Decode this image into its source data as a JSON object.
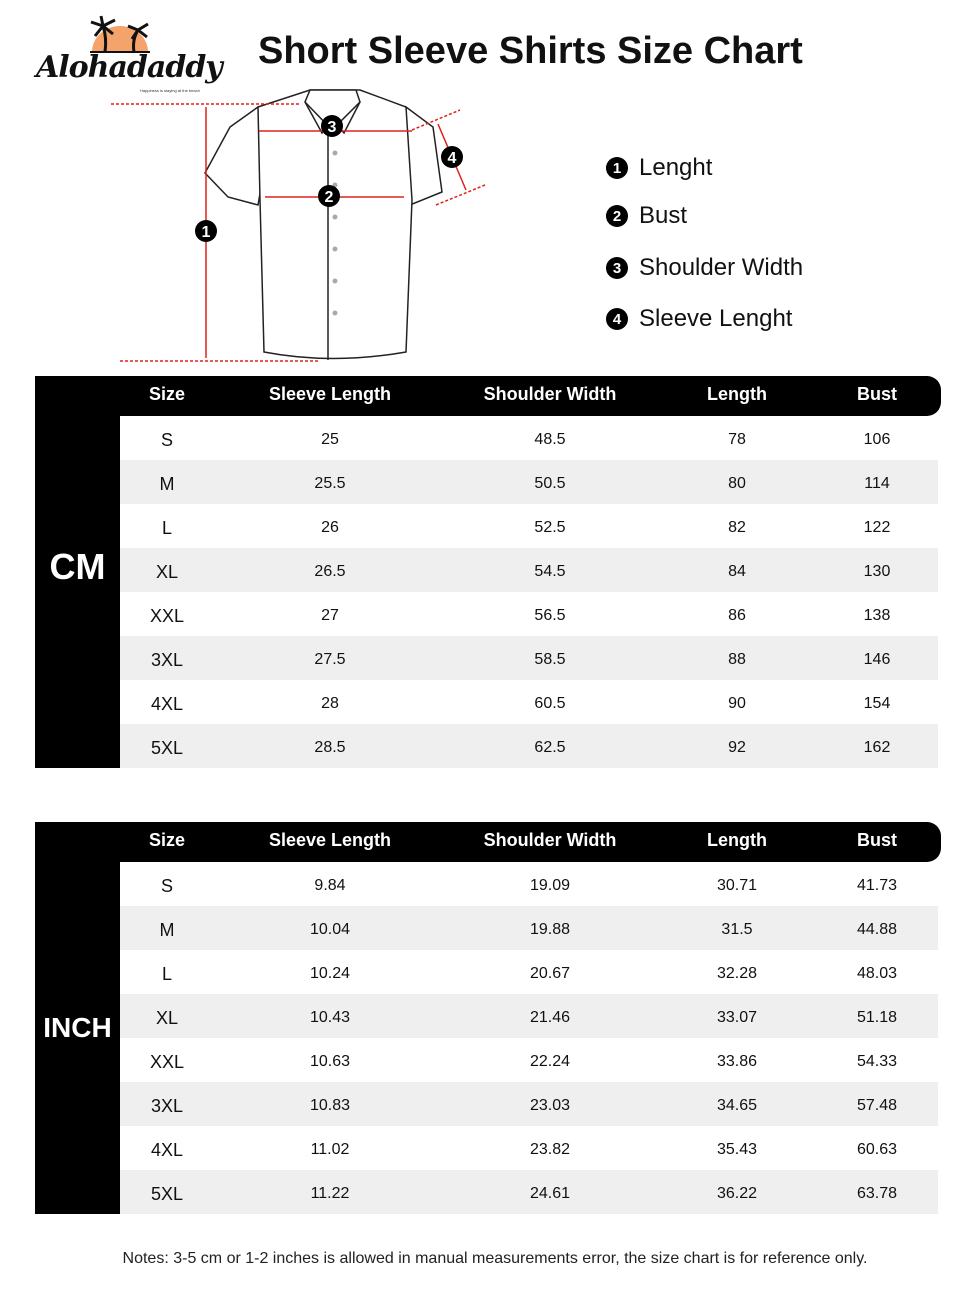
{
  "brand": {
    "name": "Alohadaddy",
    "tagline": "Happiness is staying at the beach",
    "sun_color": "#f4a36b"
  },
  "title": "Short Sleeve Shirts Size Chart",
  "diagram": {
    "markers": [
      "1",
      "2",
      "3",
      "4"
    ],
    "measure_color": "#e0201b"
  },
  "legend": [
    {
      "num": "1",
      "label": "Lenght"
    },
    {
      "num": "2",
      "label": "Bust"
    },
    {
      "num": "3",
      "label": "Shoulder Width"
    },
    {
      "num": "4",
      "label": "Sleeve Lenght"
    }
  ],
  "columns": [
    "Size",
    "Sleeve Length",
    "Shoulder Width",
    "Length",
    "Bust"
  ],
  "tables": [
    {
      "unit": "CM",
      "rows": [
        [
          "S",
          "25",
          "48.5",
          "78",
          "106"
        ],
        [
          "M",
          "25.5",
          "50.5",
          "80",
          "114"
        ],
        [
          "L",
          "26",
          "52.5",
          "82",
          "122"
        ],
        [
          "XL",
          "26.5",
          "54.5",
          "84",
          "130"
        ],
        [
          "XXL",
          "27",
          "56.5",
          "86",
          "138"
        ],
        [
          "3XL",
          "27.5",
          "58.5",
          "88",
          "146"
        ],
        [
          "4XL",
          "28",
          "60.5",
          "90",
          "154"
        ],
        [
          "5XL",
          "28.5",
          "62.5",
          "92",
          "162"
        ]
      ]
    },
    {
      "unit": "INCH",
      "rows": [
        [
          "S",
          "9.84",
          "19.09",
          "30.71",
          "41.73"
        ],
        [
          "M",
          "10.04",
          "19.88",
          "31.5",
          "44.88"
        ],
        [
          "L",
          "10.24",
          "20.67",
          "32.28",
          "48.03"
        ],
        [
          "XL",
          "10.43",
          "21.46",
          "33.07",
          "51.18"
        ],
        [
          "XXL",
          "10.63",
          "22.24",
          "33.86",
          "54.33"
        ],
        [
          "3XL",
          "10.83",
          "23.03",
          "34.65",
          "57.48"
        ],
        [
          "4XL",
          "11.02",
          "23.82",
          "35.43",
          "60.63"
        ],
        [
          "5XL",
          "11.22",
          "24.61",
          "36.22",
          "63.78"
        ]
      ]
    }
  ],
  "notes": "Notes: 3-5 cm or 1-2 inches is allowed in manual measurements error, the size chart is for reference only."
}
